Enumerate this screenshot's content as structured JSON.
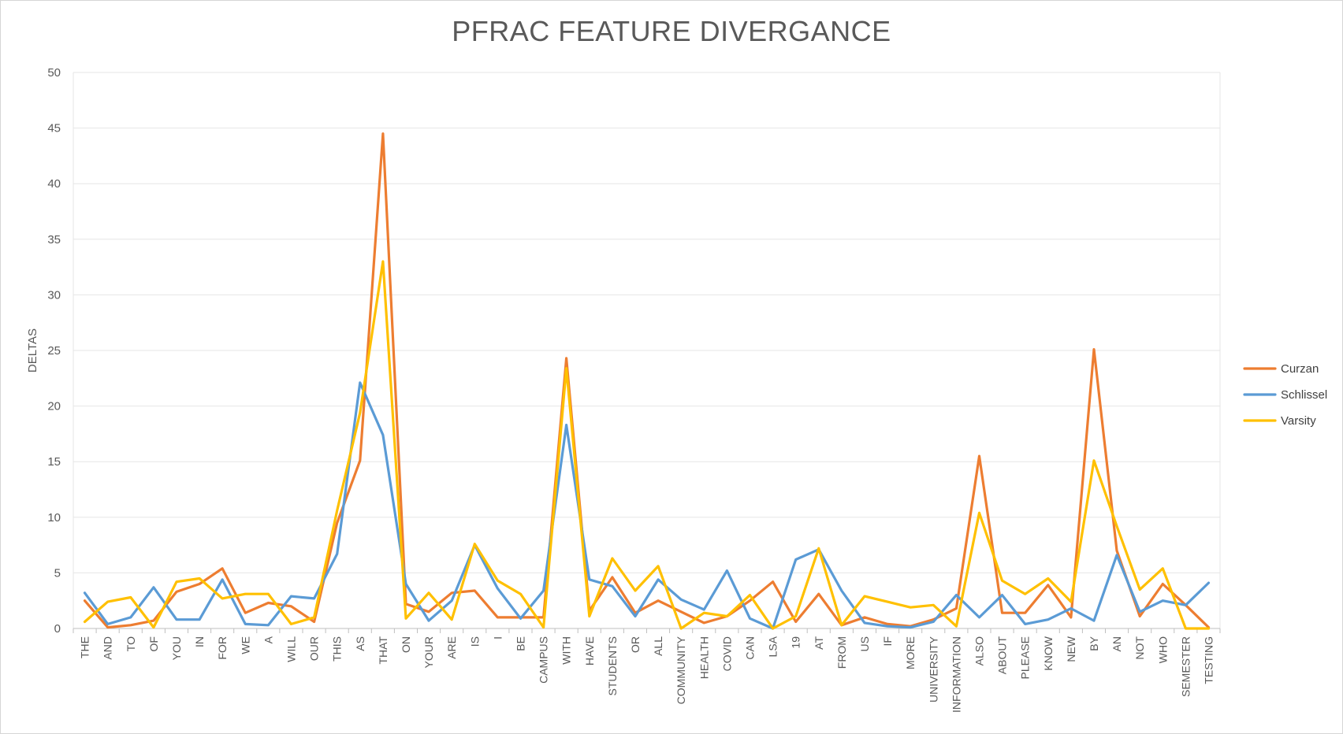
{
  "chart_data": {
    "type": "line",
    "title": "PFRAC FEATURE DIVERGANCE",
    "xlabel": "",
    "ylabel": "DELTAS",
    "ylim": [
      0,
      50
    ],
    "yticks": [
      0,
      5,
      10,
      15,
      20,
      25,
      30,
      35,
      40,
      45,
      50
    ],
    "grid": "horizontal",
    "legend_position": "right",
    "categories": [
      "THE",
      "AND",
      "TO",
      "OF",
      "YOU",
      "IN",
      "FOR",
      "WE",
      "A",
      "WILL",
      "OUR",
      "THIS",
      "AS",
      "THAT",
      "ON",
      "YOUR",
      "ARE",
      "IS",
      "I",
      "BE",
      "CAMPUS",
      "WITH",
      "HAVE",
      "STUDENTS",
      "OR",
      "ALL",
      "COMMUNITY",
      "HEALTH",
      "COVID",
      "CAN",
      "LSA",
      "19",
      "AT",
      "FROM",
      "US",
      "IF",
      "MORE",
      "UNIVERSITY",
      "INFORMATION",
      "ALSO",
      "ABOUT",
      "PLEASE",
      "KNOW",
      "NEW",
      "BY",
      "AN",
      "NOT",
      "WHO",
      "SEMESTER",
      "TESTING"
    ],
    "series": [
      {
        "name": "Curzan",
        "color": "#ED7D31",
        "values": [
          2.5,
          0.1,
          0.3,
          0.7,
          3.3,
          4.0,
          5.4,
          1.4,
          2.3,
          2.0,
          0.6,
          9.5,
          15.1,
          44.5,
          2.2,
          1.5,
          3.2,
          3.4,
          1.0,
          1.0,
          1.0,
          24.3,
          1.6,
          4.6,
          1.4,
          2.5,
          1.5,
          0.5,
          1.1,
          2.5,
          4.2,
          0.6,
          3.1,
          0.3,
          1.0,
          0.4,
          0.2,
          0.8,
          1.8,
          15.5,
          1.4,
          1.4,
          3.9,
          1.0,
          25.1,
          7.0,
          1.1,
          4.0,
          2.1,
          0.1
        ]
      },
      {
        "name": "Schlissel",
        "color": "#5B9BD5",
        "values": [
          3.2,
          0.4,
          1.0,
          3.7,
          0.8,
          0.8,
          4.4,
          0.4,
          0.3,
          2.9,
          2.7,
          6.7,
          22.1,
          17.4,
          4.0,
          0.7,
          2.5,
          7.5,
          3.6,
          0.9,
          3.4,
          18.3,
          4.4,
          3.8,
          1.1,
          4.4,
          2.6,
          1.7,
          5.2,
          0.9,
          0.0,
          6.2,
          7.1,
          3.4,
          0.5,
          0.2,
          0.1,
          0.6,
          3.0,
          1.0,
          3.0,
          0.4,
          0.8,
          1.8,
          0.7,
          6.6,
          1.5,
          2.5,
          2.1,
          4.1
        ]
      },
      {
        "name": "Varsity",
        "color": "#FFC000",
        "values": [
          0.6,
          2.4,
          2.8,
          0.1,
          4.2,
          4.5,
          2.7,
          3.1,
          3.1,
          0.4,
          1.0,
          10.6,
          19.4,
          33.0,
          0.9,
          3.2,
          0.8,
          7.6,
          4.3,
          3.1,
          0.1,
          23.4,
          1.1,
          6.3,
          3.4,
          5.6,
          0.0,
          1.4,
          1.1,
          3.0,
          0.0,
          1.1,
          7.2,
          0.3,
          2.9,
          2.4,
          1.9,
          2.1,
          0.2,
          10.4,
          4.3,
          3.1,
          4.5,
          2.4,
          15.1,
          9.2,
          3.5,
          5.4,
          0.0,
          0.0
        ]
      }
    ]
  }
}
